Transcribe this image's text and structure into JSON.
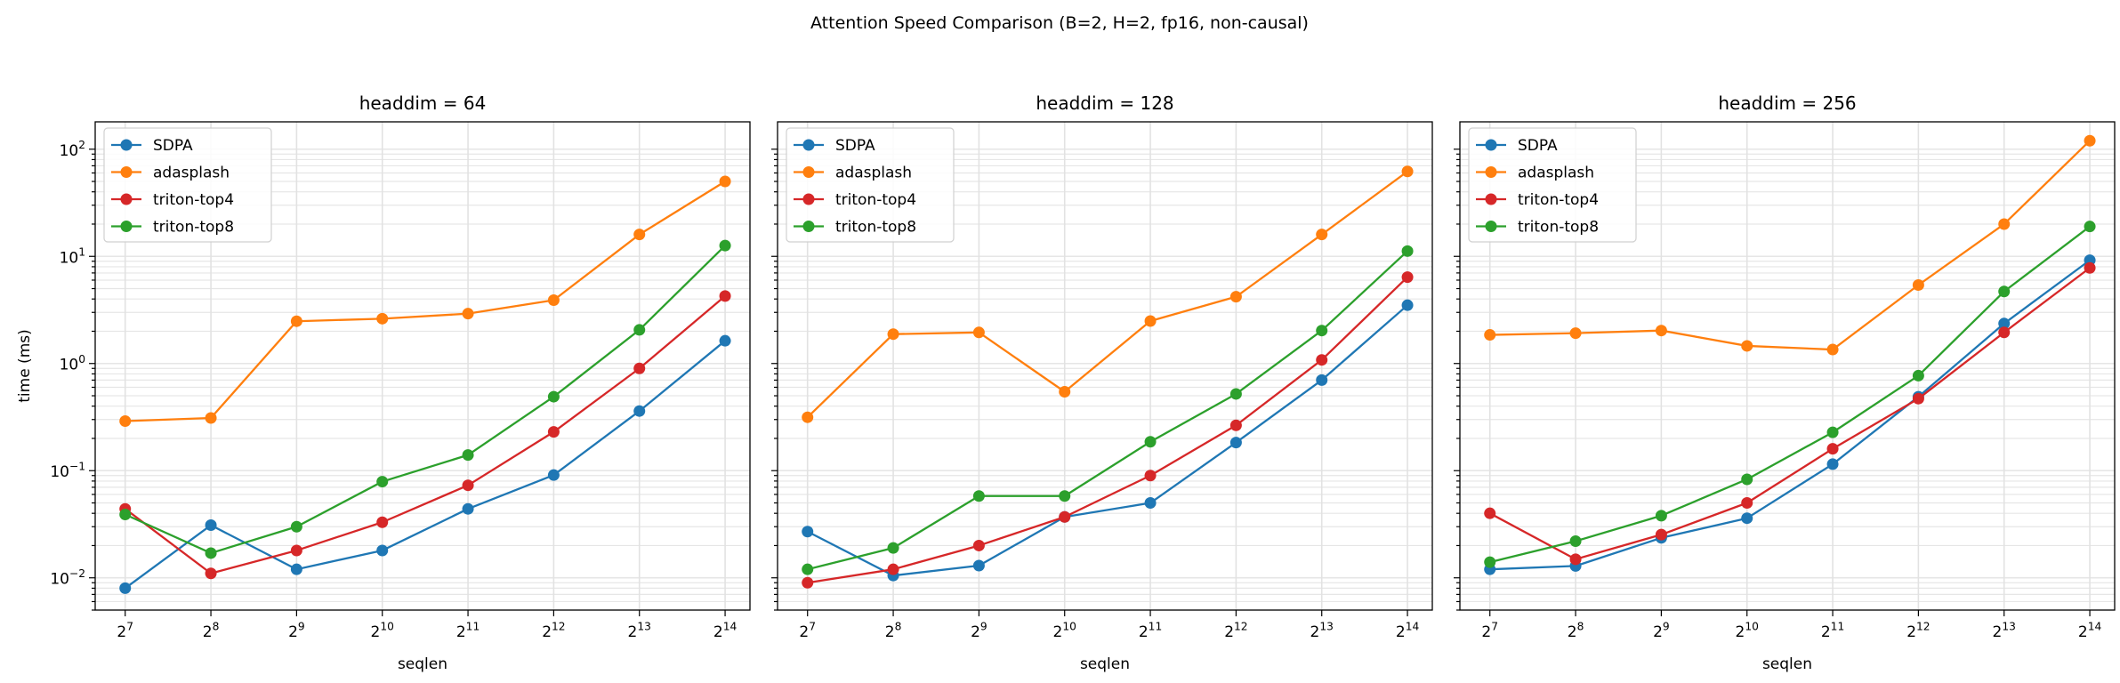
{
  "figure_title": "Attention Speed Comparison  (B=2, H=2, fp16, non-causal)",
  "chart_data": [
    {
      "type": "line",
      "title": "headdim = 64",
      "xlabel": "seqlen",
      "ylabel": "time (ms)",
      "x": [
        128,
        256,
        512,
        1024,
        2048,
        4096,
        8192,
        16384
      ],
      "xtick_labels": [
        {
          "base": "2",
          "exp": "7"
        },
        {
          "base": "2",
          "exp": "8"
        },
        {
          "base": "2",
          "exp": "9"
        },
        {
          "base": "2",
          "exp": "10"
        },
        {
          "base": "2",
          "exp": "11"
        },
        {
          "base": "2",
          "exp": "12"
        },
        {
          "base": "2",
          "exp": "13"
        },
        {
          "base": "2",
          "exp": "14"
        }
      ],
      "xscale": "log2",
      "yscale": "log10",
      "ylim": [
        0.005,
        180
      ],
      "ytick_labels": [
        {
          "base": "10",
          "exp": "−2"
        },
        {
          "base": "10",
          "exp": "−1"
        },
        {
          "base": "10",
          "exp": "0"
        },
        {
          "base": "10",
          "exp": "1"
        },
        {
          "base": "10",
          "exp": "2"
        }
      ],
      "ytick_values": [
        0.01,
        0.1,
        1,
        10,
        100
      ],
      "grid": true,
      "legend_position": "top-left",
      "series": [
        {
          "name": "SDPA",
          "color": "#1f77b4",
          "values": [
            0.008,
            0.031,
            0.012,
            0.018,
            0.044,
            0.091,
            0.36,
            1.63
          ]
        },
        {
          "name": "adasplash",
          "color": "#ff7f0e",
          "values": [
            0.29,
            0.31,
            2.48,
            2.62,
            2.92,
            3.9,
            16.0,
            50.0
          ]
        },
        {
          "name": "triton-top4",
          "color": "#d62728",
          "values": [
            0.044,
            0.011,
            0.018,
            0.033,
            0.073,
            0.23,
            0.9,
            4.26
          ]
        },
        {
          "name": "triton-top8",
          "color": "#2ca02c",
          "values": [
            0.039,
            0.017,
            0.03,
            0.079,
            0.14,
            0.49,
            2.06,
            12.6
          ]
        }
      ]
    },
    {
      "type": "line",
      "title": "headdim = 128",
      "xlabel": "seqlen",
      "x": [
        128,
        256,
        512,
        1024,
        2048,
        4096,
        8192,
        16384
      ],
      "xtick_labels": [
        {
          "base": "2",
          "exp": "7"
        },
        {
          "base": "2",
          "exp": "8"
        },
        {
          "base": "2",
          "exp": "9"
        },
        {
          "base": "2",
          "exp": "10"
        },
        {
          "base": "2",
          "exp": "11"
        },
        {
          "base": "2",
          "exp": "12"
        },
        {
          "base": "2",
          "exp": "13"
        },
        {
          "base": "2",
          "exp": "14"
        }
      ],
      "xscale": "log2",
      "yscale": "log10",
      "ylim": [
        0.005,
        180
      ],
      "grid": true,
      "legend_position": "top-left",
      "series": [
        {
          "name": "SDPA",
          "color": "#1f77b4",
          "values": [
            0.027,
            0.0105,
            0.013,
            0.037,
            0.05,
            0.183,
            0.7,
            3.5
          ]
        },
        {
          "name": "adasplash",
          "color": "#ff7f0e",
          "values": [
            0.315,
            1.88,
            1.95,
            0.545,
            2.49,
            4.2,
            16.0,
            62.0
          ]
        },
        {
          "name": "triton-top4",
          "color": "#d62728",
          "values": [
            0.009,
            0.012,
            0.02,
            0.037,
            0.09,
            0.265,
            1.08,
            6.4
          ]
        },
        {
          "name": "triton-top8",
          "color": "#2ca02c",
          "values": [
            0.012,
            0.019,
            0.058,
            0.058,
            0.186,
            0.52,
            2.03,
            11.2
          ]
        }
      ]
    },
    {
      "type": "line",
      "title": "headdim = 256",
      "xlabel": "seqlen",
      "x": [
        128,
        256,
        512,
        1024,
        2048,
        4096,
        8192,
        16384
      ],
      "xtick_labels": [
        {
          "base": "2",
          "exp": "7"
        },
        {
          "base": "2",
          "exp": "8"
        },
        {
          "base": "2",
          "exp": "9"
        },
        {
          "base": "2",
          "exp": "10"
        },
        {
          "base": "2",
          "exp": "11"
        },
        {
          "base": "2",
          "exp": "12"
        },
        {
          "base": "2",
          "exp": "13"
        },
        {
          "base": "2",
          "exp": "14"
        }
      ],
      "xscale": "log2",
      "yscale": "log10",
      "ylim": [
        0.005,
        180
      ],
      "grid": true,
      "legend_position": "top-left",
      "series": [
        {
          "name": "SDPA",
          "color": "#1f77b4",
          "values": [
            0.012,
            0.0129,
            0.0236,
            0.036,
            0.115,
            0.49,
            2.36,
            9.2
          ]
        },
        {
          "name": "adasplash",
          "color": "#ff7f0e",
          "values": [
            1.85,
            1.92,
            2.03,
            1.46,
            1.35,
            5.4,
            20.0,
            120.0
          ]
        },
        {
          "name": "triton-top4",
          "color": "#d62728",
          "values": [
            0.04,
            0.0149,
            0.0253,
            0.05,
            0.16,
            0.47,
            1.95,
            7.8
          ]
        },
        {
          "name": "triton-top8",
          "color": "#2ca02c",
          "values": [
            0.014,
            0.022,
            0.038,
            0.083,
            0.228,
            0.77,
            4.7,
            19.0
          ]
        }
      ]
    }
  ]
}
